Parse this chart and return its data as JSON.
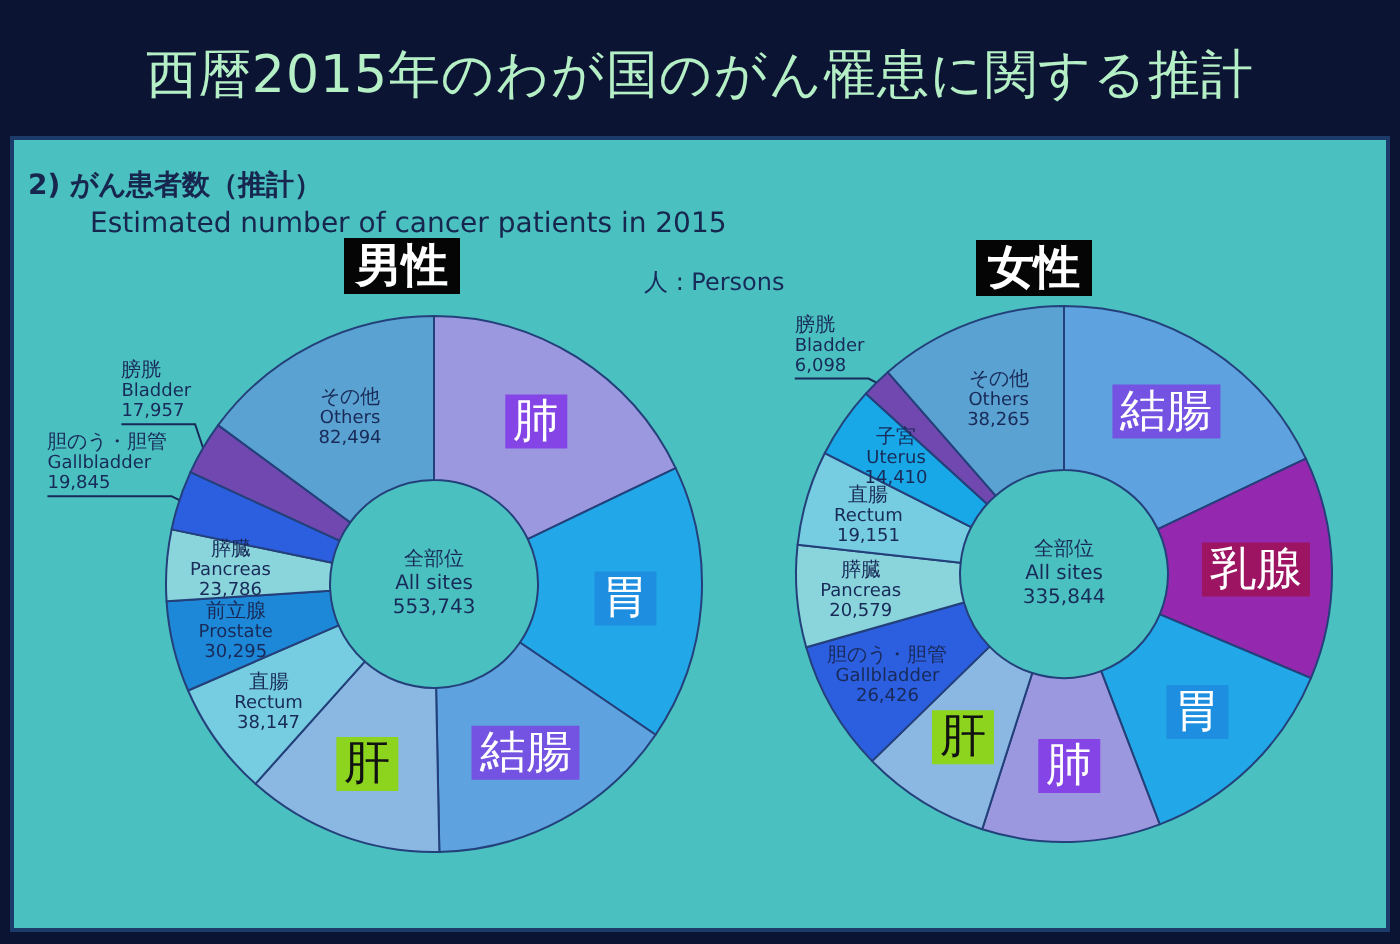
{
  "chart_data": [
    {
      "type": "other",
      "title": "西暦2015年のわが国のがん罹患に関する推計",
      "subtitle": "2)  がん患者数（推計）",
      "annotations": [
        "Estimated number of cancer patients in 2015"
      ]
    },
    {
      "type": "donut",
      "title": "男性",
      "categories": [
        "肺",
        "胃",
        "結腸",
        "肝",
        "直腸\nRectum",
        "前立腺\nProstate",
        "膵臓\nPancreas",
        "胆のう・胆管\nGallbladder",
        "膀胱\nBladder",
        "その他\nOthers"
      ],
      "values": [
        99000,
        92000,
        84000,
        66000,
        38147,
        30295,
        23786,
        19845,
        17957,
        82494
      ],
      "value_labels": [
        null,
        null,
        null,
        null,
        "38,147",
        "30,295",
        "23,786",
        "19,845",
        "17,957",
        "82,494"
      ],
      "colors": [
        "#9c98e0",
        "#22a8e8",
        "#5ea2e0",
        "#8ab8e2",
        "#76cce0",
        "#1e88d8",
        "#8ad4dc",
        "#2c5ee0",
        "#7048b0",
        "#5aa2d2"
      ],
      "annotations": [
        "全部位\nAll sites\n553,743",
        "人 : Persons"
      ]
    },
    {
      "type": "donut",
      "title": "女性",
      "categories": [
        "結腸",
        "乳腺",
        "胃",
        "肺",
        "肝",
        "胆のう・胆管\nGallbladder",
        "膵臓\nPancreas",
        "直腸\nRectum",
        "子宮\nUterus",
        "膀胱\nBladder",
        "その他\nOthers"
      ],
      "values": [
        60000,
        45000,
        43000,
        36000,
        26000,
        26426,
        20579,
        19151,
        14410,
        6098,
        38265
      ],
      "value_labels": [
        null,
        null,
        null,
        null,
        null,
        "26,426",
        "20,579",
        "19,151",
        "14,410",
        "6,098",
        "38,265"
      ],
      "colors": [
        "#5ea2e0",
        "#9428ae",
        "#22a8e8",
        "#9c98e0",
        "#8ab8e2",
        "#2c5ee0",
        "#8ad4dc",
        "#76cce0",
        "#18a8e8",
        "#7048b0",
        "#5aa2d2"
      ],
      "annotations": [
        "全部位\nAll sites\n335,844"
      ]
    }
  ]
}
